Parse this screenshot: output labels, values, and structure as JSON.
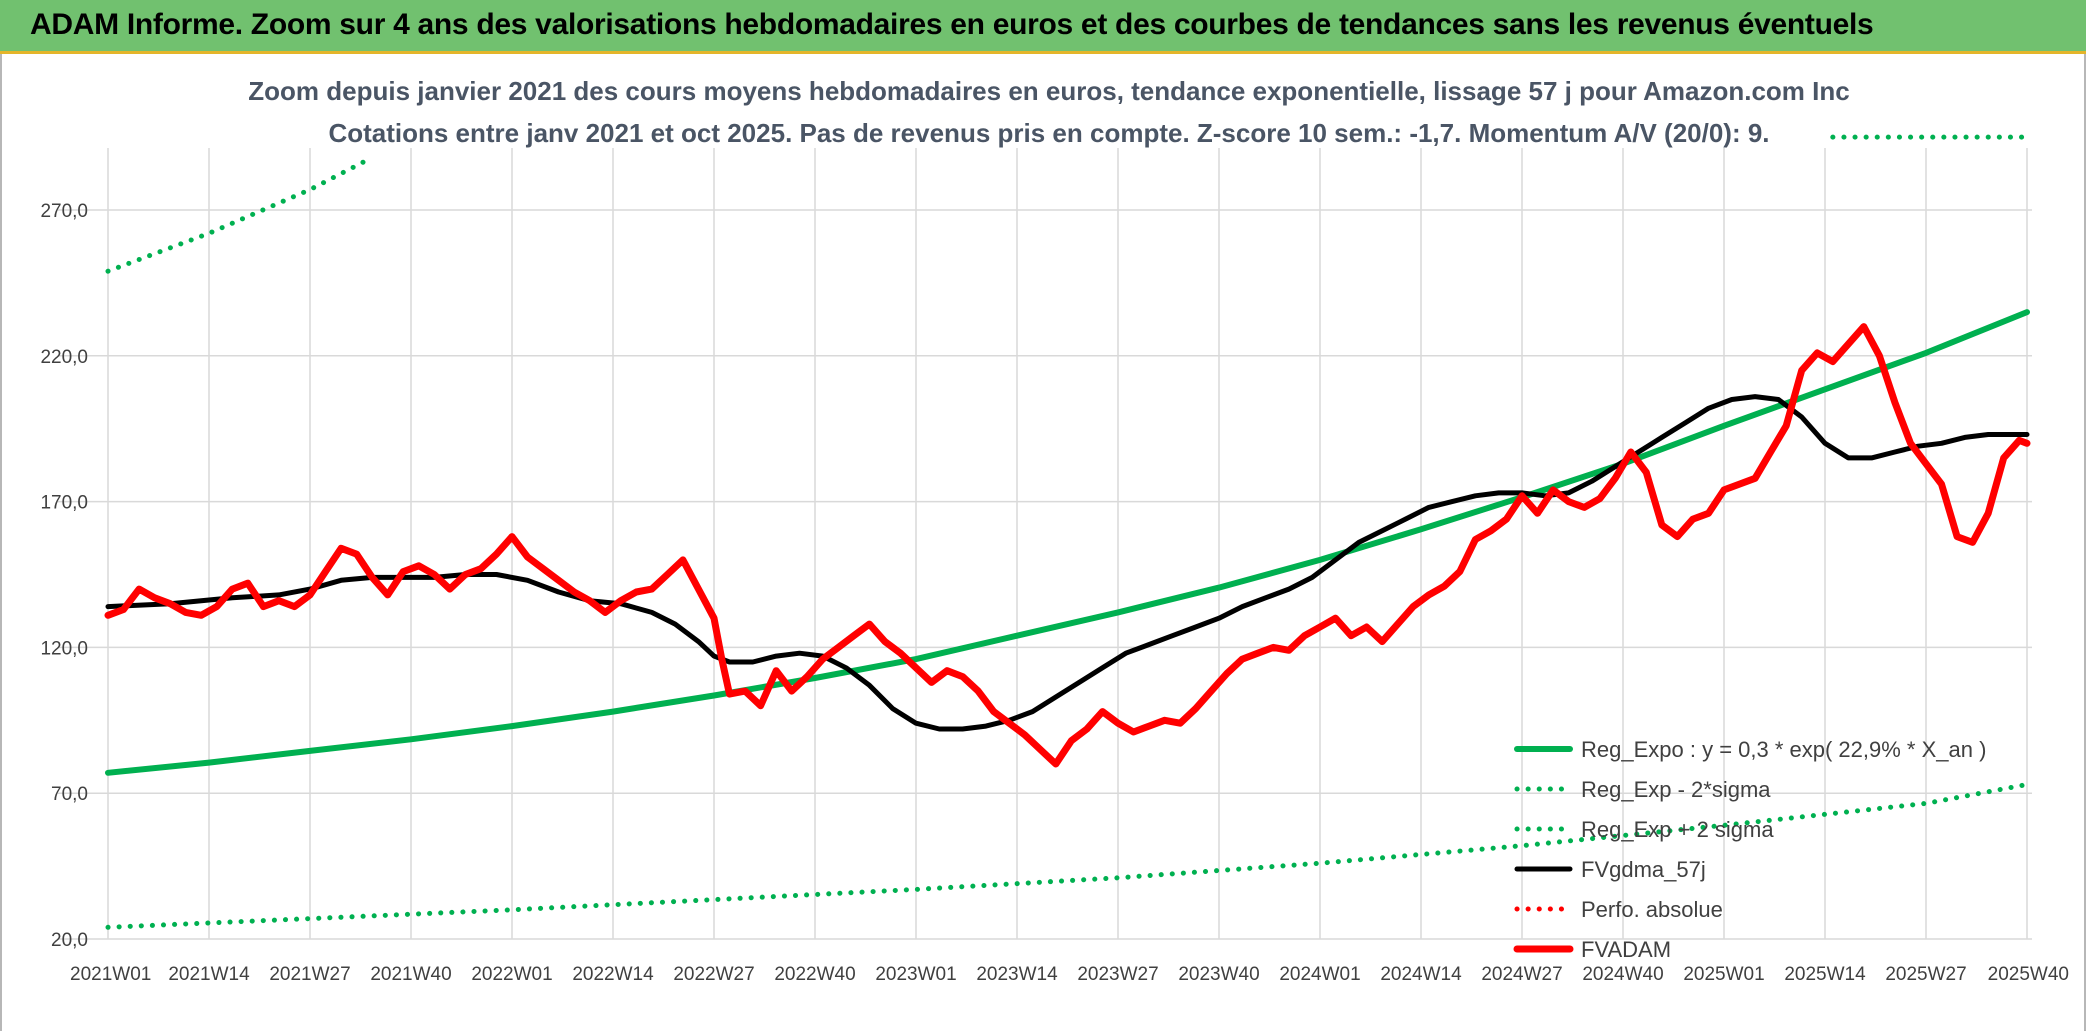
{
  "header": {
    "title": "ADAM Informe. Zoom sur 4 ans des valorisations hebdomadaires en euros et des courbes de tendances sans les revenus éventuels"
  },
  "colors": {
    "header_bg": "#71c16f",
    "header_border": "#e4b52a",
    "trend": "#00b050",
    "smooth": "#000000",
    "price": "#ff0000",
    "title_text": "#4a5565"
  },
  "chart_data": {
    "type": "line",
    "title": "Zoom depuis janvier 2021 des cours moyens hebdomadaires en euros, tendance exponentielle, lissage 57 j pour Amazon.com Inc",
    "subtitle": "Cotations entre janv 2021 et oct 2025. Pas de revenus pris en compte. Z-score 10 sem.: -1,7. Momentum A/V (20/0): 9.",
    "xlabel": "",
    "ylabel": "",
    "ylim": [
      20,
      295
    ],
    "yticks": [
      "20,0",
      "70,0",
      "120,0",
      "170,0",
      "220,0",
      "270,0"
    ],
    "ytick_values": [
      20,
      70,
      120,
      170,
      220,
      270
    ],
    "xlim": [
      0,
      247
    ],
    "xticks": [
      "2021W01",
      "2021W14",
      "2021W27",
      "2021W40",
      "2022W01",
      "2022W14",
      "2022W27",
      "2022W40",
      "2023W01",
      "2023W14",
      "2023W27",
      "2023W40",
      "2024W01",
      "2024W14",
      "2024W27",
      "2024W40",
      "2025W01",
      "2025W14",
      "2025W27",
      "2025W40"
    ],
    "xtick_values": [
      0,
      13,
      26,
      39,
      52,
      65,
      78,
      91,
      104,
      117,
      130,
      143,
      156,
      169,
      182,
      195,
      208,
      221,
      234,
      247
    ],
    "grid": true,
    "legend_position": "bottom-right",
    "series": [
      {
        "name": "Reg_Expo : y = 0,3 * exp( 22,9% *  X_an )",
        "style": "solid-thick",
        "color": "#00b050",
        "points": [
          [
            0,
            77
          ],
          [
            13,
            80.5
          ],
          [
            26,
            84.5
          ],
          [
            39,
            88.5
          ],
          [
            52,
            93
          ],
          [
            65,
            98
          ],
          [
            78,
            103.5
          ],
          [
            91,
            109.5
          ],
          [
            104,
            116
          ],
          [
            117,
            124
          ],
          [
            130,
            132
          ],
          [
            143,
            140.5
          ],
          [
            156,
            150
          ],
          [
            169,
            160.5
          ],
          [
            182,
            171.5
          ],
          [
            195,
            183
          ],
          [
            208,
            196
          ],
          [
            221,
            208.5
          ],
          [
            234,
            221
          ],
          [
            247,
            235
          ]
        ]
      },
      {
        "name": "Reg_Exp - 2*sigma",
        "style": "dotted",
        "color": "#00b050",
        "points": [
          [
            0,
            24
          ],
          [
            26,
            27
          ],
          [
            52,
            30
          ],
          [
            78,
            33.5
          ],
          [
            104,
            37
          ],
          [
            130,
            41
          ],
          [
            156,
            46
          ],
          [
            182,
            52
          ],
          [
            208,
            59
          ],
          [
            234,
            66.5
          ],
          [
            247,
            73
          ]
        ]
      },
      {
        "name": "Reg_Exp + 2 sigma",
        "style": "dotted",
        "color": "#00b050",
        "points": [
          [
            0,
            249
          ],
          [
            13,
            262
          ],
          [
            26,
            277
          ],
          [
            34,
            288
          ]
        ],
        "extra_points": [
          [
            222,
            295
          ],
          [
            247,
            295
          ]
        ]
      },
      {
        "name": "FVgdma_57j",
        "style": "solid",
        "color": "#000000",
        "points": [
          [
            0,
            134
          ],
          [
            8,
            135
          ],
          [
            16,
            137
          ],
          [
            22,
            138
          ],
          [
            26,
            140
          ],
          [
            30,
            143
          ],
          [
            34,
            144
          ],
          [
            38,
            144
          ],
          [
            42,
            144
          ],
          [
            46,
            145
          ],
          [
            50,
            145
          ],
          [
            54,
            143
          ],
          [
            58,
            139
          ],
          [
            62,
            136
          ],
          [
            66,
            135
          ],
          [
            70,
            132
          ],
          [
            73,
            128
          ],
          [
            76,
            122
          ],
          [
            78,
            117
          ],
          [
            80,
            115
          ],
          [
            83,
            115
          ],
          [
            86,
            117
          ],
          [
            89,
            118
          ],
          [
            92,
            117
          ],
          [
            95,
            113
          ],
          [
            98,
            107
          ],
          [
            101,
            99
          ],
          [
            104,
            94
          ],
          [
            107,
            92
          ],
          [
            110,
            92
          ],
          [
            113,
            93
          ],
          [
            116,
            95
          ],
          [
            119,
            98
          ],
          [
            122,
            103
          ],
          [
            125,
            108
          ],
          [
            128,
            113
          ],
          [
            131,
            118
          ],
          [
            134,
            121
          ],
          [
            137,
            124
          ],
          [
            140,
            127
          ],
          [
            143,
            130
          ],
          [
            146,
            134
          ],
          [
            149,
            137
          ],
          [
            152,
            140
          ],
          [
            155,
            144
          ],
          [
            158,
            150
          ],
          [
            161,
            156
          ],
          [
            164,
            160
          ],
          [
            167,
            164
          ],
          [
            170,
            168
          ],
          [
            173,
            170
          ],
          [
            176,
            172
          ],
          [
            179,
            173
          ],
          [
            182,
            173
          ],
          [
            185,
            172
          ],
          [
            188,
            173
          ],
          [
            191,
            177
          ],
          [
            194,
            182
          ],
          [
            197,
            187
          ],
          [
            200,
            192
          ],
          [
            203,
            197
          ],
          [
            206,
            202
          ],
          [
            209,
            205
          ],
          [
            212,
            206
          ],
          [
            215,
            205
          ],
          [
            218,
            199
          ],
          [
            221,
            190
          ],
          [
            224,
            185
          ],
          [
            227,
            185
          ],
          [
            230,
            187
          ],
          [
            233,
            189
          ],
          [
            236,
            190
          ],
          [
            239,
            192
          ],
          [
            242,
            193
          ],
          [
            245,
            193
          ],
          [
            247,
            193
          ]
        ]
      },
      {
        "name": "Perfo. absolue",
        "style": "dotted",
        "color": "#ff0000",
        "points": []
      },
      {
        "name": "FVADAM",
        "style": "solid-thick",
        "color": "#ff0000",
        "points": [
          [
            0,
            131
          ],
          [
            2,
            133
          ],
          [
            4,
            140
          ],
          [
            6,
            137
          ],
          [
            8,
            135
          ],
          [
            10,
            132
          ],
          [
            12,
            131
          ],
          [
            14,
            134
          ],
          [
            16,
            140
          ],
          [
            18,
            142
          ],
          [
            20,
            134
          ],
          [
            22,
            136
          ],
          [
            24,
            134
          ],
          [
            26,
            138
          ],
          [
            28,
            146
          ],
          [
            30,
            154
          ],
          [
            32,
            152
          ],
          [
            34,
            144
          ],
          [
            36,
            138
          ],
          [
            38,
            146
          ],
          [
            40,
            148
          ],
          [
            42,
            145
          ],
          [
            44,
            140
          ],
          [
            46,
            145
          ],
          [
            48,
            147
          ],
          [
            50,
            152
          ],
          [
            52,
            158
          ],
          [
            54,
            151
          ],
          [
            56,
            147
          ],
          [
            58,
            143
          ],
          [
            60,
            139
          ],
          [
            62,
            136
          ],
          [
            64,
            132
          ],
          [
            66,
            136
          ],
          [
            68,
            139
          ],
          [
            70,
            140
          ],
          [
            72,
            145
          ],
          [
            74,
            150
          ],
          [
            76,
            140
          ],
          [
            78,
            130
          ],
          [
            79,
            116
          ],
          [
            80,
            104
          ],
          [
            82,
            105
          ],
          [
            84,
            100
          ],
          [
            86,
            112
          ],
          [
            88,
            105
          ],
          [
            90,
            110
          ],
          [
            92,
            116
          ],
          [
            94,
            120
          ],
          [
            96,
            124
          ],
          [
            98,
            128
          ],
          [
            100,
            122
          ],
          [
            102,
            118
          ],
          [
            104,
            113
          ],
          [
            106,
            108
          ],
          [
            108,
            112
          ],
          [
            110,
            110
          ],
          [
            112,
            105
          ],
          [
            114,
            98
          ],
          [
            116,
            94
          ],
          [
            118,
            90
          ],
          [
            120,
            85
          ],
          [
            122,
            80
          ],
          [
            124,
            88
          ],
          [
            126,
            92
          ],
          [
            128,
            98
          ],
          [
            130,
            94
          ],
          [
            132,
            91
          ],
          [
            134,
            93
          ],
          [
            136,
            95
          ],
          [
            138,
            94
          ],
          [
            140,
            99
          ],
          [
            142,
            105
          ],
          [
            144,
            111
          ],
          [
            146,
            116
          ],
          [
            148,
            118
          ],
          [
            150,
            120
          ],
          [
            152,
            119
          ],
          [
            154,
            124
          ],
          [
            156,
            127
          ],
          [
            158,
            130
          ],
          [
            160,
            124
          ],
          [
            162,
            127
          ],
          [
            164,
            122
          ],
          [
            166,
            128
          ],
          [
            168,
            134
          ],
          [
            170,
            138
          ],
          [
            172,
            141
          ],
          [
            174,
            146
          ],
          [
            176,
            157
          ],
          [
            178,
            160
          ],
          [
            180,
            164
          ],
          [
            182,
            172
          ],
          [
            184,
            166
          ],
          [
            186,
            174
          ],
          [
            188,
            170
          ],
          [
            190,
            168
          ],
          [
            192,
            171
          ],
          [
            194,
            178
          ],
          [
            196,
            187
          ],
          [
            198,
            180
          ],
          [
            200,
            162
          ],
          [
            202,
            158
          ],
          [
            204,
            164
          ],
          [
            206,
            166
          ],
          [
            208,
            174
          ],
          [
            210,
            176
          ],
          [
            212,
            178
          ],
          [
            214,
            187
          ],
          [
            216,
            196
          ],
          [
            218,
            215
          ],
          [
            220,
            221
          ],
          [
            222,
            218
          ],
          [
            224,
            224
          ],
          [
            226,
            230
          ],
          [
            228,
            220
          ],
          [
            230,
            204
          ],
          [
            232,
            190
          ],
          [
            234,
            183
          ],
          [
            236,
            176
          ],
          [
            238,
            158
          ],
          [
            240,
            156
          ],
          [
            242,
            166
          ],
          [
            244,
            185
          ],
          [
            246,
            191
          ],
          [
            247,
            190
          ]
        ]
      }
    ]
  }
}
